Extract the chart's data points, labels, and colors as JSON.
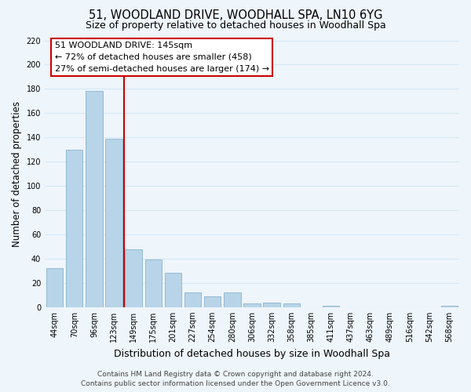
{
  "title": "51, WOODLAND DRIVE, WOODHALL SPA, LN10 6YG",
  "subtitle": "Size of property relative to detached houses in Woodhall Spa",
  "xlabel": "Distribution of detached houses by size in Woodhall Spa",
  "ylabel": "Number of detached properties",
  "bar_labels": [
    "44sqm",
    "70sqm",
    "96sqm",
    "123sqm",
    "149sqm",
    "175sqm",
    "201sqm",
    "227sqm",
    "254sqm",
    "280sqm",
    "306sqm",
    "332sqm",
    "358sqm",
    "385sqm",
    "411sqm",
    "437sqm",
    "463sqm",
    "489sqm",
    "516sqm",
    "542sqm",
    "568sqm"
  ],
  "bar_values": [
    32,
    130,
    178,
    139,
    48,
    39,
    28,
    12,
    9,
    12,
    3,
    4,
    3,
    0,
    1,
    0,
    0,
    0,
    0,
    0,
    1
  ],
  "bar_color": "#b8d4e8",
  "bar_edge_color": "#8ab4d0",
  "grid_color": "#d4e8f5",
  "reference_line_color": "#cc0000",
  "annotation_title": "51 WOODLAND DRIVE: 145sqm",
  "annotation_line1": "← 72% of detached houses are smaller (458)",
  "annotation_line2": "27% of semi-detached houses are larger (174) →",
  "annotation_box_color": "#ffffff",
  "annotation_box_edge": "#cc0000",
  "ylim": [
    0,
    220
  ],
  "yticks": [
    0,
    20,
    40,
    60,
    80,
    100,
    120,
    140,
    160,
    180,
    200,
    220
  ],
  "footer_line1": "Contains HM Land Registry data © Crown copyright and database right 2024.",
  "footer_line2": "Contains public sector information licensed under the Open Government Licence v3.0.",
  "bg_color": "#eef5fb",
  "title_fontsize": 10.5,
  "subtitle_fontsize": 9,
  "xlabel_fontsize": 9,
  "ylabel_fontsize": 8.5,
  "tick_fontsize": 7,
  "footer_fontsize": 6.5,
  "annotation_fontsize": 8
}
